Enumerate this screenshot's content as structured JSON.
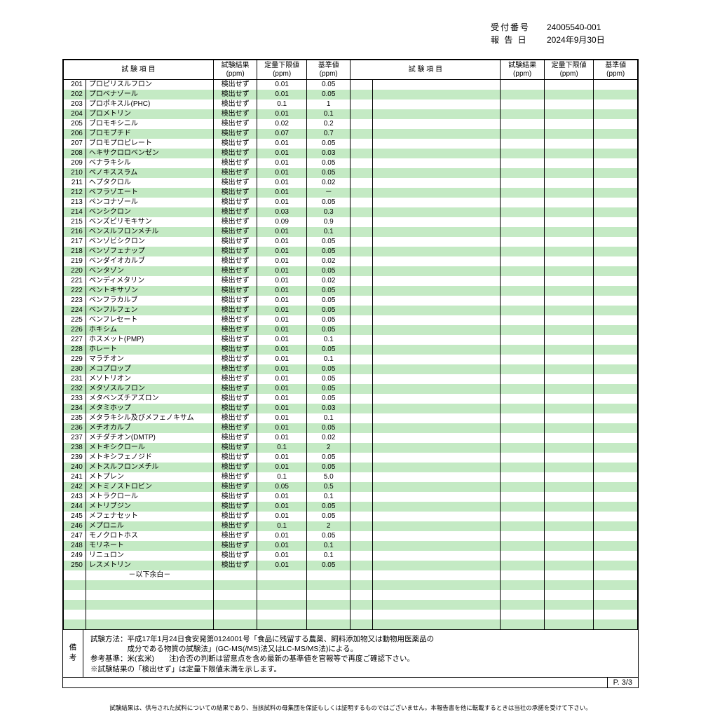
{
  "header": {
    "reception_label": "受付番号",
    "reception_no": "24005540-001",
    "report_label": "報 告 日",
    "report_date": "2024年9月30日"
  },
  "table": {
    "headers": {
      "item": "試 験 項 目",
      "result": "試験結果",
      "lowlimit": "定量下限値",
      "standard": "基準値",
      "unit": "(ppm)"
    },
    "rows": [
      {
        "no": "201",
        "name": "プロピリスルフロン",
        "res": "検出せず",
        "low": "0.01",
        "std": "0.05"
      },
      {
        "no": "202",
        "name": "プロベナゾール",
        "res": "検出せず",
        "low": "0.01",
        "std": "0.05"
      },
      {
        "no": "203",
        "name": "プロポキスル(PHC)",
        "res": "検出せず",
        "low": "0.1",
        "std": "1"
      },
      {
        "no": "204",
        "name": "プロメトリン",
        "res": "検出せず",
        "low": "0.01",
        "std": "0.1"
      },
      {
        "no": "205",
        "name": "ブロモキシニル",
        "res": "検出せず",
        "low": "0.02",
        "std": "0.2"
      },
      {
        "no": "206",
        "name": "ブロモブチド",
        "res": "検出せず",
        "low": "0.07",
        "std": "0.7"
      },
      {
        "no": "207",
        "name": "ブロモプロピレート",
        "res": "検出せず",
        "low": "0.01",
        "std": "0.05"
      },
      {
        "no": "208",
        "name": "ヘキサクロロベンゼン",
        "res": "検出せず",
        "low": "0.01",
        "std": "0.03"
      },
      {
        "no": "209",
        "name": "ベナラキシル",
        "res": "検出せず",
        "low": "0.01",
        "std": "0.05"
      },
      {
        "no": "210",
        "name": "ペノキススラム",
        "res": "検出せず",
        "low": "0.01",
        "std": "0.05"
      },
      {
        "no": "211",
        "name": "ヘプタクロル",
        "res": "検出せず",
        "low": "0.01",
        "std": "0.02"
      },
      {
        "no": "212",
        "name": "ベフラゾエート",
        "res": "検出せず",
        "low": "0.01",
        "std": "－"
      },
      {
        "no": "213",
        "name": "ペンコナゾール",
        "res": "検出せず",
        "low": "0.01",
        "std": "0.05"
      },
      {
        "no": "214",
        "name": "ベンシクロン",
        "res": "検出せず",
        "low": "0.03",
        "std": "0.3"
      },
      {
        "no": "215",
        "name": "ベンズピリモキサン",
        "res": "検出せず",
        "low": "0.09",
        "std": "0.9"
      },
      {
        "no": "216",
        "name": "ベンスルフロンメチル",
        "res": "検出せず",
        "low": "0.01",
        "std": "0.1"
      },
      {
        "no": "217",
        "name": "ベンゾビシクロン",
        "res": "検出せず",
        "low": "0.01",
        "std": "0.05"
      },
      {
        "no": "218",
        "name": "ベンゾフェナップ",
        "res": "検出せず",
        "low": "0.01",
        "std": "0.05"
      },
      {
        "no": "219",
        "name": "ベンダイオカルブ",
        "res": "検出せず",
        "low": "0.01",
        "std": "0.02"
      },
      {
        "no": "220",
        "name": "ベンタゾン",
        "res": "検出せず",
        "low": "0.01",
        "std": "0.05"
      },
      {
        "no": "221",
        "name": "ペンディメタリン",
        "res": "検出せず",
        "low": "0.01",
        "std": "0.02"
      },
      {
        "no": "222",
        "name": "ペントキサゾン",
        "res": "検出せず",
        "low": "0.01",
        "std": "0.05"
      },
      {
        "no": "223",
        "name": "ベンフラカルブ",
        "res": "検出せず",
        "low": "0.01",
        "std": "0.05"
      },
      {
        "no": "224",
        "name": "ベンフルフェン",
        "res": "検出せず",
        "low": "0.01",
        "std": "0.05"
      },
      {
        "no": "225",
        "name": "ベンフレセート",
        "res": "検出せず",
        "low": "0.01",
        "std": "0.05"
      },
      {
        "no": "226",
        "name": "ホキシム",
        "res": "検出せず",
        "low": "0.01",
        "std": "0.05"
      },
      {
        "no": "227",
        "name": "ホスメット(PMP)",
        "res": "検出せず",
        "low": "0.01",
        "std": "0.1"
      },
      {
        "no": "228",
        "name": "ホレート",
        "res": "検出せず",
        "low": "0.01",
        "std": "0.05"
      },
      {
        "no": "229",
        "name": "マラチオン",
        "res": "検出せず",
        "low": "0.01",
        "std": "0.1"
      },
      {
        "no": "230",
        "name": "メコプロップ",
        "res": "検出せず",
        "low": "0.01",
        "std": "0.05"
      },
      {
        "no": "231",
        "name": "メソトリオン",
        "res": "検出せず",
        "low": "0.01",
        "std": "0.05"
      },
      {
        "no": "232",
        "name": "メタゾスルフロン",
        "res": "検出せず",
        "low": "0.01",
        "std": "0.05"
      },
      {
        "no": "233",
        "name": "メタベンズチアズロン",
        "res": "検出せず",
        "low": "0.01",
        "std": "0.05"
      },
      {
        "no": "234",
        "name": "メタミホップ",
        "res": "検出せず",
        "low": "0.01",
        "std": "0.03"
      },
      {
        "no": "235",
        "name": "メタラキシル及びメフェノキサム",
        "res": "検出せず",
        "low": "0.01",
        "std": "0.1"
      },
      {
        "no": "236",
        "name": "メチオカルブ",
        "res": "検出せず",
        "low": "0.01",
        "std": "0.05"
      },
      {
        "no": "237",
        "name": "メチダチオン(DMTP)",
        "res": "検出せず",
        "low": "0.01",
        "std": "0.02"
      },
      {
        "no": "238",
        "name": "メトキシクロール",
        "res": "検出せず",
        "low": "0.1",
        "std": "2"
      },
      {
        "no": "239",
        "name": "メトキシフェノジド",
        "res": "検出せず",
        "low": "0.01",
        "std": "0.05"
      },
      {
        "no": "240",
        "name": "メトスルフロンメチル",
        "res": "検出せず",
        "low": "0.01",
        "std": "0.05"
      },
      {
        "no": "241",
        "name": "メトプレン",
        "res": "検出せず",
        "low": "0.1",
        "std": "5.0"
      },
      {
        "no": "242",
        "name": "メトミノストロビン",
        "res": "検出せず",
        "low": "0.05",
        "std": "0.5"
      },
      {
        "no": "243",
        "name": "メトラクロール",
        "res": "検出せず",
        "low": "0.01",
        "std": "0.1"
      },
      {
        "no": "244",
        "name": "メトリブジン",
        "res": "検出せず",
        "low": "0.01",
        "std": "0.05"
      },
      {
        "no": "245",
        "name": "メフェナセット",
        "res": "検出せず",
        "low": "0.01",
        "std": "0.05"
      },
      {
        "no": "246",
        "name": "メプロニル",
        "res": "検出せず",
        "low": "0.1",
        "std": "2"
      },
      {
        "no": "247",
        "name": "モノクロトホス",
        "res": "検出せず",
        "low": "0.01",
        "std": "0.05"
      },
      {
        "no": "248",
        "name": "モリネート",
        "res": "検出せず",
        "low": "0.01",
        "std": "0.1"
      },
      {
        "no": "249",
        "name": "リニュロン",
        "res": "検出せず",
        "low": "0.01",
        "std": "0.1"
      },
      {
        "no": "250",
        "name": "レスメトリン",
        "res": "検出せず",
        "low": "0.01",
        "std": "0.05"
      }
    ],
    "blank_message": "－以下余白－",
    "trailing_blank_rows": 5,
    "colors": {
      "row_alt_bg": "#c4eac4",
      "border": "#000000",
      "background": "#ffffff"
    }
  },
  "remarks": {
    "side": "備考",
    "lines": [
      "試験方法：平成17年1月24日食安発第0124001号「食品に残留する農薬、飼料添加物又は動物用医薬品の",
      "　　　　　成分である物質の試験法」(GC-MS(/MS)法又はLC-MS/MS法)による。",
      "参考基準：米(玄米)　　注)合否の判断は留意点を含め最新の基準値を官報等で再度ご確認下さい。",
      "※試験結果の「検出せず」は定量下限値未満を示します。"
    ]
  },
  "page_number": "P. 3/3",
  "disclaimer": "試験結果は、供与された試料についての結果であり、当該試料の母集団を保証もしくは証明するものではございません。本報告書を他に転載するときは当社の承諾を受けて下さい。"
}
